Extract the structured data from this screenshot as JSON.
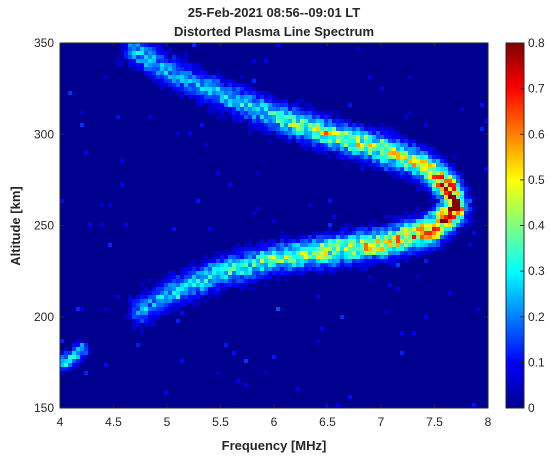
{
  "chart_data": {
    "type": "heatmap",
    "title": "25-Feb-2021 08:56--09:01 LT",
    "subtitle": "Distorted Plasma Line Spectrum",
    "xlabel": "Frequency [MHz]",
    "ylabel": "Altitude [km]",
    "xlim": [
      4,
      8
    ],
    "ylim": [
      150,
      350
    ],
    "xticks": [
      "4",
      "4.5",
      "5",
      "5.5",
      "6",
      "6.5",
      "7",
      "7.5",
      "8"
    ],
    "yticks": [
      "150",
      "200",
      "250",
      "300",
      "350"
    ],
    "colorbar": {
      "colormap": "jet",
      "range": [
        0,
        0.8
      ],
      "ticks": [
        "0",
        "0.1",
        "0.2",
        "0.3",
        "0.4",
        "0.5",
        "0.6",
        "0.7",
        "0.8"
      ]
    },
    "ridge": [
      {
        "frequency": 4.7,
        "altitude": 346,
        "intensity": 0.25
      },
      {
        "frequency": 5.0,
        "altitude": 335,
        "intensity": 0.22
      },
      {
        "frequency": 5.5,
        "altitude": 322,
        "intensity": 0.25
      },
      {
        "frequency": 6.0,
        "altitude": 310,
        "intensity": 0.32
      },
      {
        "frequency": 6.5,
        "altitude": 300,
        "intensity": 0.45
      },
      {
        "frequency": 7.0,
        "altitude": 292,
        "intensity": 0.48
      },
      {
        "frequency": 7.4,
        "altitude": 283,
        "intensity": 0.5
      },
      {
        "frequency": 7.65,
        "altitude": 270,
        "intensity": 0.7
      },
      {
        "frequency": 7.7,
        "altitude": 260,
        "intensity": 0.8
      },
      {
        "frequency": 7.5,
        "altitude": 248,
        "intensity": 0.62
      },
      {
        "frequency": 7.0,
        "altitude": 240,
        "intensity": 0.52
      },
      {
        "frequency": 6.5,
        "altitude": 236,
        "intensity": 0.45
      },
      {
        "frequency": 6.0,
        "altitude": 232,
        "intensity": 0.38
      },
      {
        "frequency": 5.5,
        "altitude": 224,
        "intensity": 0.3
      },
      {
        "frequency": 5.0,
        "altitude": 212,
        "intensity": 0.25
      },
      {
        "frequency": 4.75,
        "altitude": 203,
        "intensity": 0.2
      }
    ],
    "low_feature": [
      {
        "frequency": 4.05,
        "altitude": 175,
        "intensity": 0.3
      },
      {
        "frequency": 4.2,
        "altitude": 182,
        "intensity": 0.25
      }
    ],
    "background_intensity": 0.03,
    "grid": false
  }
}
